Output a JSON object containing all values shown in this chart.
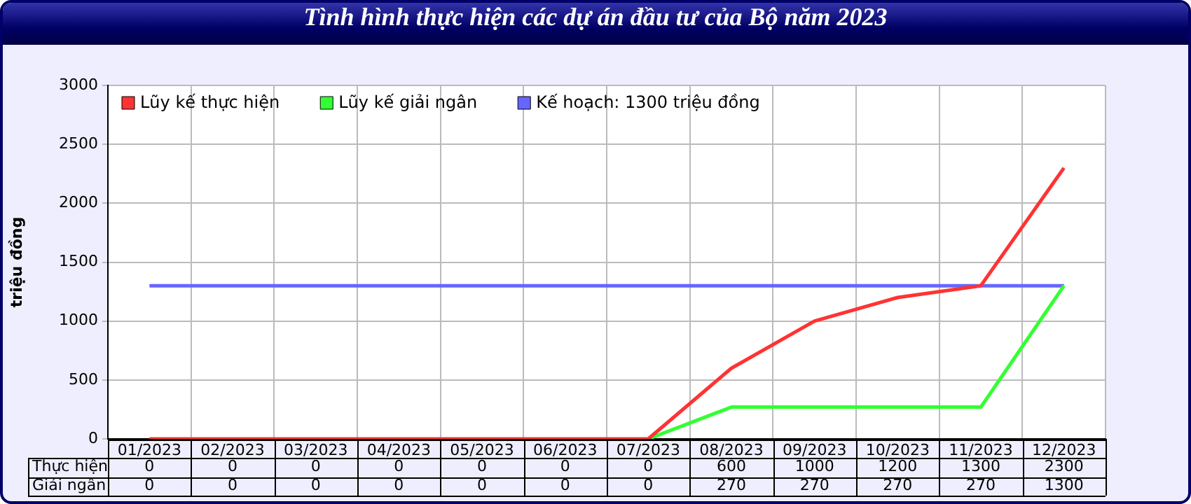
{
  "chart_data": {
    "type": "line",
    "title": "Tình hình thực hiện các dự án đầu tư của Bộ năm 2023",
    "ylabel": "triệu đồng",
    "categories": [
      "01/2023",
      "02/2023",
      "03/2023",
      "04/2023",
      "05/2023",
      "06/2023",
      "07/2023",
      "08/2023",
      "09/2023",
      "10/2023",
      "11/2023",
      "12/2023"
    ],
    "series": [
      {
        "name": "Lũy kế thực hiện",
        "color": "#ff3333",
        "values": [
          0,
          0,
          0,
          0,
          0,
          0,
          0,
          600,
          1000,
          1200,
          1300,
          2300
        ],
        "value_labels": [
          "0",
          "0",
          "0",
          "0",
          "0",
          "0",
          "0",
          "600",
          "1000",
          "1200",
          "1300",
          "2300"
        ]
      },
      {
        "name": "Lũy kế giải ngân",
        "color": "#33ff33",
        "values": [
          null,
          null,
          null,
          null,
          null,
          null,
          0,
          270,
          270,
          270,
          270,
          1300
        ],
        "value_labels": [
          "0",
          "0",
          "0",
          "0",
          "0",
          "0",
          "0",
          "270",
          "270",
          "270",
          "270",
          "1300"
        ]
      },
      {
        "name": "Kế hoạch: 1300 triệu đồng",
        "color": "#6666ff",
        "values": [
          1300,
          1300,
          1300,
          1300,
          1300,
          1300,
          1300,
          1300,
          1300,
          1300,
          1300,
          1300
        ]
      }
    ],
    "annotations": [
      "Thực hiện",
      "Giải ngân"
    ],
    "ylim": [
      0,
      3000
    ],
    "yticks": [
      0,
      500,
      1000,
      1500,
      2000,
      2500,
      3000
    ],
    "grid": true,
    "legend": "top left",
    "marker": "none",
    "line_style": "solid"
  }
}
